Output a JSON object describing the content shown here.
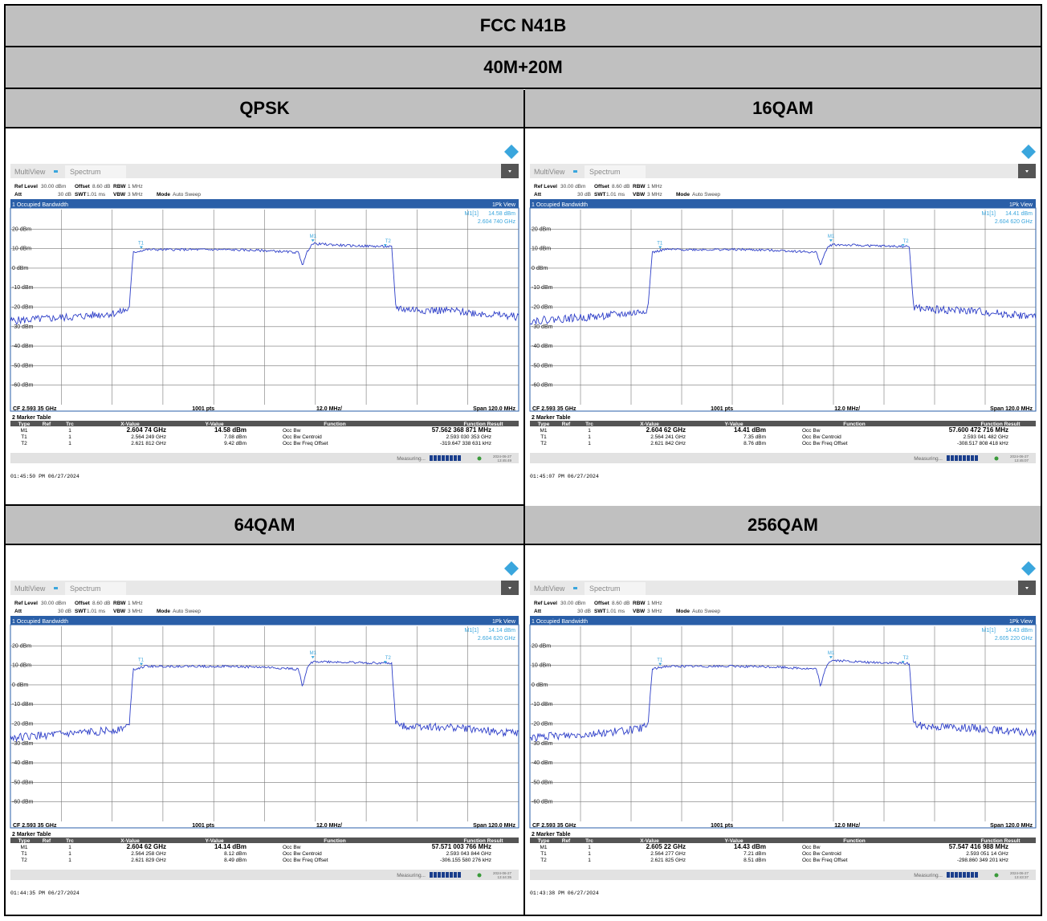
{
  "title": "FCC N41B",
  "subtitle": "40M+20M",
  "panels": [
    {
      "modulation": "QPSK",
      "m1_value": "14.58 dBm",
      "m1_freq": "2.604 740 GHz",
      "markers": [
        [
          "M1",
          "1",
          "2.604 74 GHz",
          "14.58 dBm",
          "Occ Bw",
          "57.562 368 871 MHz"
        ],
        [
          "T1",
          "1",
          "2.564 249 GHz",
          "7.08 dBm",
          "Occ Bw Centroid",
          "2.593 030 353 GHz"
        ],
        [
          "T2",
          "1",
          "2.621 812 GHz",
          "9.42 dBm",
          "Occ Bw Freq Offset",
          "-319.647 338 631 kHz"
        ]
      ],
      "timestamp": "01:45:50 PM  06/27/2024",
      "status_time": "2024-06-27 13:45:49"
    },
    {
      "modulation": "16QAM",
      "m1_value": "14.41 dBm",
      "m1_freq": "2.604 620 GHz",
      "markers": [
        [
          "M1",
          "1",
          "2.604 62 GHz",
          "14.41 dBm",
          "Occ Bw",
          "57.600 472 716 MHz"
        ],
        [
          "T1",
          "1",
          "2.564 241 GHz",
          "7.35 dBm",
          "Occ Bw Centroid",
          "2.593 041 482 GHz"
        ],
        [
          "T2",
          "1",
          "2.621 842 GHz",
          "8.76 dBm",
          "Occ Bw Freq Offset",
          "-308.517 808 418 kHz"
        ]
      ],
      "timestamp": "01:45:07 PM  06/27/2024",
      "status_time": "2024-06-27 13:45:07"
    },
    {
      "modulation": "64QAM",
      "m1_value": "14.14 dBm",
      "m1_freq": "2.604 620 GHz",
      "markers": [
        [
          "M1",
          "1",
          "2.604 62 GHz",
          "14.14 dBm",
          "Occ Bw",
          "57.571 003 766 MHz"
        ],
        [
          "T1",
          "1",
          "2.564 258 GHz",
          "8.12 dBm",
          "Occ Bw Centroid",
          "2.593 043 844 GHz"
        ],
        [
          "T2",
          "1",
          "2.621 829 GHz",
          "8.49 dBm",
          "Occ Bw Freq Offset",
          "-306.155 580 276 kHz"
        ]
      ],
      "timestamp": "01:44:35 PM  06/27/2024",
      "status_time": "2024-06-27 13:44:35"
    },
    {
      "modulation": "256QAM",
      "m1_value": "14.43 dBm",
      "m1_freq": "2.605 220 GHz",
      "markers": [
        [
          "M1",
          "1",
          "2.605 22 GHz",
          "14.43 dBm",
          "Occ Bw",
          "57.547 416 988 MHz"
        ],
        [
          "T1",
          "1",
          "2.564 277 GHz",
          "7.21 dBm",
          "Occ Bw Centroid",
          "2.593 051 14 GHz"
        ],
        [
          "T2",
          "1",
          "2.621 825 GHz",
          "8.51 dBm",
          "Occ Bw Freq Offset",
          "-298.860 349 201 kHz"
        ]
      ],
      "timestamp": "01:43:38 PM  06/27/2024",
      "status_time": "2024-06-27 13:43:37"
    }
  ],
  "common": {
    "tab_multiview": "MultiView",
    "tab_spectrum": "Spectrum",
    "ref_level_label": "Ref Level",
    "ref_level": "30.00 dBm",
    "offset_label": "Offset",
    "offset": "8.60 dB",
    "rbw_label": "RBW",
    "rbw": "1 MHz",
    "att_label": "Att",
    "att": "30 dB",
    "swt_label": "SWT",
    "swt": "1.01 ms",
    "vbw_label": "VBW",
    "vbw": "3 MHz",
    "mode_label": "Mode",
    "mode": "Auto Sweep",
    "window_title": "1 Occupied Bandwidth",
    "view_label": "1Pk View",
    "m1_label": "M1[1]",
    "cf": "CF 2.593 35 GHz",
    "pts": "1001 pts",
    "div": "12.0 MHz/",
    "span": "Span 120.0 MHz",
    "marker_table_title": "2 Marker Table",
    "col_headers": [
      "Type",
      "Ref",
      "Trc",
      "X-Value",
      "Y-Value",
      "Function",
      "Function Result"
    ],
    "measuring": "Measuring...",
    "y_ticks": [
      "20 dBm",
      "10 dBm",
      "0 dBm",
      "-10 dBm",
      "-20 dBm",
      "-30 dBm",
      "-40 dBm",
      "-50 dBm",
      "-60 dBm"
    ]
  },
  "chart_data": [
    {
      "type": "line",
      "title": "QPSK",
      "xlabel": "",
      "ylabel": "",
      "x_unit": "MHz offset from CF 2.593 35 GHz",
      "xlim": [
        -60,
        60
      ],
      "ylim": [
        -70,
        30
      ],
      "x": [
        -60,
        -45,
        -35,
        -32,
        -31,
        -28,
        -10,
        0,
        8,
        9,
        10,
        11,
        12,
        20,
        30,
        31,
        33,
        45,
        60
      ],
      "y": [
        -27,
        -25,
        -23,
        -21,
        8,
        9.5,
        9.5,
        9,
        8,
        1.5,
        8,
        12,
        12.5,
        11.5,
        11,
        -20,
        -21,
        -22,
        -25
      ],
      "grid": true
    },
    {
      "type": "line",
      "title": "16QAM",
      "xlabel": "",
      "ylabel": "",
      "x_unit": "MHz offset from CF 2.593 35 GHz",
      "xlim": [
        -60,
        60
      ],
      "ylim": [
        -70,
        30
      ],
      "x": [
        -60,
        -45,
        -35,
        -32,
        -31,
        -28,
        -10,
        0,
        8,
        9,
        10,
        11,
        12,
        20,
        30,
        31,
        33,
        45,
        60
      ],
      "y": [
        -27,
        -25,
        -23,
        -21,
        8,
        9.5,
        9.5,
        9,
        8,
        1.5,
        8,
        11.5,
        12,
        11.5,
        11,
        -20,
        -21,
        -22,
        -25
      ],
      "grid": true
    },
    {
      "type": "line",
      "title": "64QAM",
      "xlabel": "",
      "ylabel": "",
      "x_unit": "MHz offset from CF 2.593 35 GHz",
      "xlim": [
        -60,
        60
      ],
      "ylim": [
        -70,
        30
      ],
      "x": [
        -60,
        -45,
        -35,
        -32,
        -31,
        -28,
        -10,
        0,
        8,
        9,
        10,
        11,
        12,
        20,
        30,
        31,
        33,
        45,
        60
      ],
      "y": [
        -27,
        -25,
        -23,
        -21,
        8,
        9.5,
        9.5,
        9,
        8,
        -1,
        8,
        11.5,
        12,
        11.5,
        11,
        -20,
        -21,
        -22,
        -25
      ],
      "grid": true
    },
    {
      "type": "line",
      "title": "256QAM",
      "xlabel": "",
      "ylabel": "",
      "x_unit": "MHz offset from CF 2.593 35 GHz",
      "xlim": [
        -60,
        60
      ],
      "ylim": [
        -70,
        30
      ],
      "x": [
        -60,
        -45,
        -35,
        -32,
        -31,
        -28,
        -10,
        0,
        8,
        9,
        10,
        11,
        12,
        20,
        30,
        31,
        33,
        45,
        60
      ],
      "y": [
        -27,
        -25,
        -23,
        -21,
        8,
        9.5,
        9.5,
        9,
        8,
        -1,
        8,
        12,
        12.5,
        11.5,
        11,
        -20,
        -21,
        -22,
        -25
      ],
      "grid": true
    }
  ]
}
